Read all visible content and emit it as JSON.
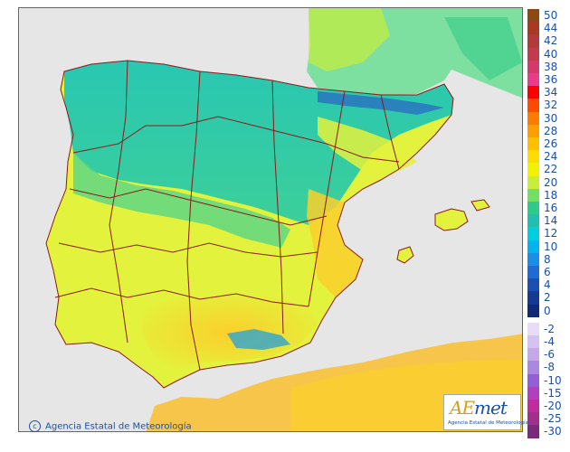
{
  "map": {
    "colors": {
      "sea": "#e6e6e6",
      "land_france": "#7ee0a0",
      "land_north": "#29c7b2",
      "land_central": "#4fd38d",
      "land_south": "#e3f23c",
      "land_hot": "#fbcf2c",
      "land_mountain": "#3aa7c8",
      "africa": "#f6c54a",
      "border": "#8b1a1a"
    }
  },
  "legend": {
    "items": [
      {
        "label": "50",
        "color": "#8b4a14"
      },
      {
        "label": "44",
        "color": "#a63a22"
      },
      {
        "label": "42",
        "color": "#b33a3a"
      },
      {
        "label": "40",
        "color": "#c23a4e"
      },
      {
        "label": "38",
        "color": "#d33a6c"
      },
      {
        "label": "36",
        "color": "#ea3c8c"
      },
      {
        "label": "34",
        "color": "#ff0000"
      },
      {
        "label": "32",
        "color": "#ff4a00"
      },
      {
        "label": "30",
        "color": "#ff7a00"
      },
      {
        "label": "28",
        "color": "#ff9e00"
      },
      {
        "label": "26",
        "color": "#ffbe00"
      },
      {
        "label": "24",
        "color": "#ffdc00"
      },
      {
        "label": "22",
        "color": "#f2f200"
      },
      {
        "label": "20",
        "color": "#c8ee3a"
      },
      {
        "label": "18",
        "color": "#74df60"
      },
      {
        "label": "16",
        "color": "#2fc98c"
      },
      {
        "label": "14",
        "color": "#22bfae"
      },
      {
        "label": "12",
        "color": "#00cfe0"
      },
      {
        "label": "10",
        "color": "#00b4f0"
      },
      {
        "label": "8",
        "color": "#1a8ee8"
      },
      {
        "label": "6",
        "color": "#1f6bd4"
      },
      {
        "label": "4",
        "color": "#1c4fb4"
      },
      {
        "label": "2",
        "color": "#163a94"
      },
      {
        "label": "0",
        "color": "#102a78"
      },
      {
        "label": "-2",
        "color": "#e8dcf6"
      },
      {
        "label": "-4",
        "color": "#d6c2f0"
      },
      {
        "label": "-6",
        "color": "#c4a8ea"
      },
      {
        "label": "-8",
        "color": "#aa88e0"
      },
      {
        "label": "-10",
        "color": "#9060d4"
      },
      {
        "label": "-15",
        "color": "#b040c0"
      },
      {
        "label": "-20",
        "color": "#c02ca0"
      },
      {
        "label": "-25",
        "color": "#a0308c"
      },
      {
        "label": "-30",
        "color": "#7a2a7a"
      }
    ]
  },
  "credit": {
    "text": "Agencia Estatal de Meteorología",
    "icon": "copyright-icon"
  },
  "logo": {
    "mark_a": "AE",
    "mark_b": "met",
    "subtitle": "Agencia Estatal de Meteorología"
  }
}
